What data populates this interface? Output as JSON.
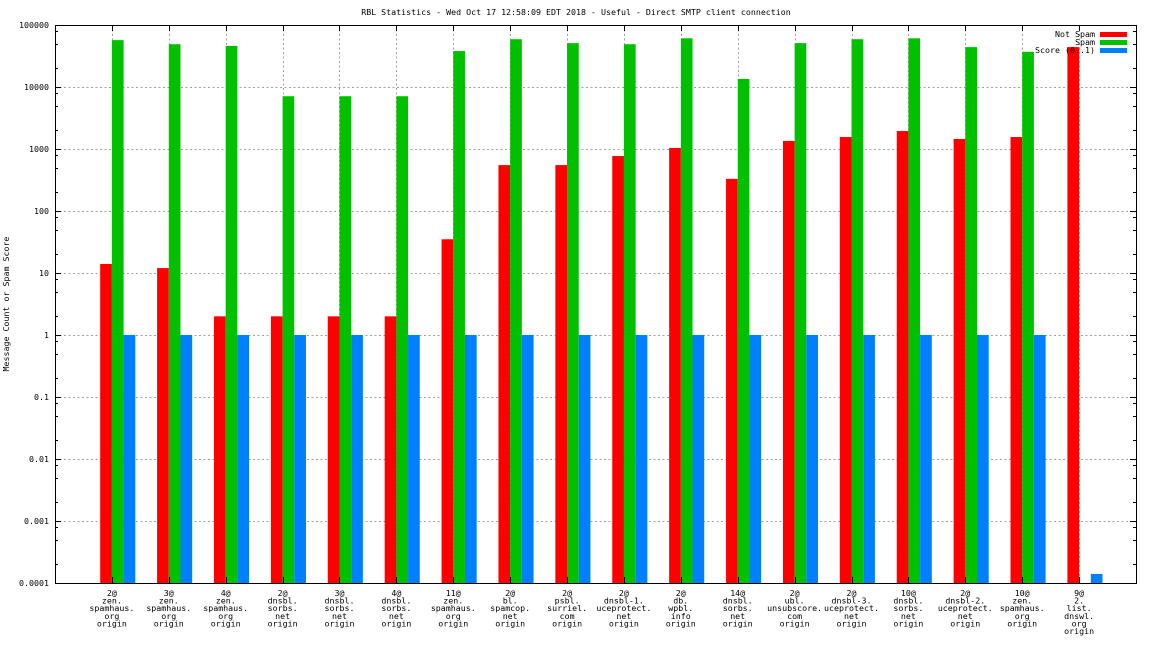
{
  "chart_data": {
    "type": "bar",
    "title": "RBL Statistics - Wed Oct 17 12:58:09 EDT 2018 - Useful - Direct SMTP client connection",
    "xlabel": "",
    "ylabel": "Message Count or Spam Score",
    "yscale": "log",
    "ylim": [
      0.0001,
      100000
    ],
    "yticks": [
      "100000",
      "10000",
      "1000",
      "100",
      "10",
      "1",
      "0.1",
      "0.01",
      "0.001",
      "0.0001"
    ],
    "grid": true,
    "legend_position": "top-right",
    "categories": [
      [
        "2@",
        "zen.",
        "spamhaus.",
        "org",
        "origin"
      ],
      [
        "3@",
        "zen.",
        "spamhaus.",
        "org",
        "origin"
      ],
      [
        "4@",
        "zen.",
        "spamhaus.",
        "org",
        "origin"
      ],
      [
        "2@",
        "dnsbl.",
        "sorbs.",
        "net",
        "origin"
      ],
      [
        "3@",
        "dnsbl.",
        "sorbs.",
        "net",
        "origin"
      ],
      [
        "4@",
        "dnsbl.",
        "sorbs.",
        "net",
        "origin"
      ],
      [
        "11@",
        "zen.",
        "spamhaus.",
        "org",
        "origin"
      ],
      [
        "2@",
        "bl.",
        "spamcop.",
        "net",
        "origin"
      ],
      [
        "2@",
        "psbl.",
        "surriel.",
        "com",
        "origin"
      ],
      [
        "2@",
        "dnsbl-1.",
        "uceprotect.",
        "net",
        "origin"
      ],
      [
        "2@",
        "db.",
        "wpbl.",
        "info",
        "origin"
      ],
      [
        "14@",
        "dnsbl.",
        "sorbs.",
        "net",
        "origin"
      ],
      [
        "2@",
        "ubl.",
        "unsubscore.",
        "com",
        "origin"
      ],
      [
        "2@",
        "dnsbl-3.",
        "uceprotect.",
        "net",
        "origin"
      ],
      [
        "10@",
        "dnsbl.",
        "sorbs.",
        "net",
        "origin"
      ],
      [
        "2@",
        "dnsbl-2.",
        "uceprotect.",
        "net",
        "origin"
      ],
      [
        "10@",
        "zen.",
        "spamhaus.",
        "org",
        "origin"
      ],
      [
        "9@",
        "2.",
        "list.",
        "dnswl.",
        "org",
        "origin"
      ]
    ],
    "series": [
      {
        "name": "Not Spam",
        "color": "#ff0000",
        "values": [
          14,
          12,
          2,
          2,
          2,
          2,
          35,
          550,
          550,
          770,
          1040,
          330,
          1350,
          1560,
          1950,
          1450,
          1560,
          44000
        ]
      },
      {
        "name": "Spam",
        "color": "#00c000",
        "values": [
          57000,
          49000,
          46000,
          7100,
          7100,
          7100,
          38000,
          59000,
          51000,
          49000,
          61000,
          13500,
          51000,
          59000,
          61000,
          44000,
          37000,
          0
        ]
      },
      {
        "name": "Score (0..1)",
        "color": "#0080ff",
        "values": [
          1,
          1,
          1,
          1,
          1,
          1,
          1,
          1,
          1,
          1,
          1,
          1,
          1,
          1,
          1,
          1,
          1,
          0.00014
        ]
      }
    ]
  }
}
